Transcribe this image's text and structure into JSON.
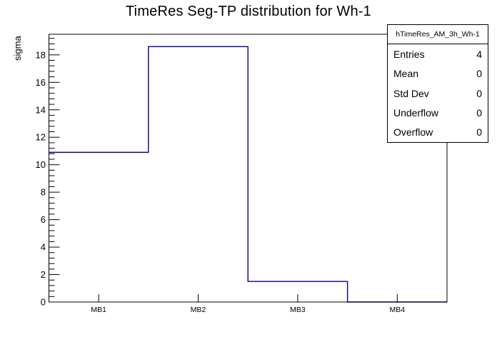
{
  "stats": {
    "header": "hTimeRes_AM_3h_Wh-1",
    "rows": [
      {
        "label": "Entries",
        "value": "4"
      },
      {
        "label": "Mean",
        "value": "0"
      },
      {
        "label": "Std Dev",
        "value": "0"
      },
      {
        "label": "Underflow",
        "value": "0"
      },
      {
        "label": "Overflow",
        "value": "0"
      }
    ]
  },
  "chart_data": {
    "type": "bar",
    "style": "step-histogram-outline",
    "title": "TimeRes Seg-TP distribution for Wh-1",
    "xlabel": "",
    "ylabel": "sigma",
    "categories": [
      "MB1",
      "MB2",
      "MB3",
      "MB4"
    ],
    "values": [
      10.9,
      18.6,
      1.5,
      0
    ],
    "ylim": [
      0,
      19.5
    ],
    "y_ticks": [
      0,
      2,
      4,
      6,
      8,
      10,
      12,
      14,
      16,
      18
    ],
    "y_tick_step": 2,
    "y_minor_step": 0.4,
    "grid": false,
    "legend": false,
    "line_color": "#000099",
    "frame_color": "#000000",
    "background_color": "#ffffff"
  }
}
